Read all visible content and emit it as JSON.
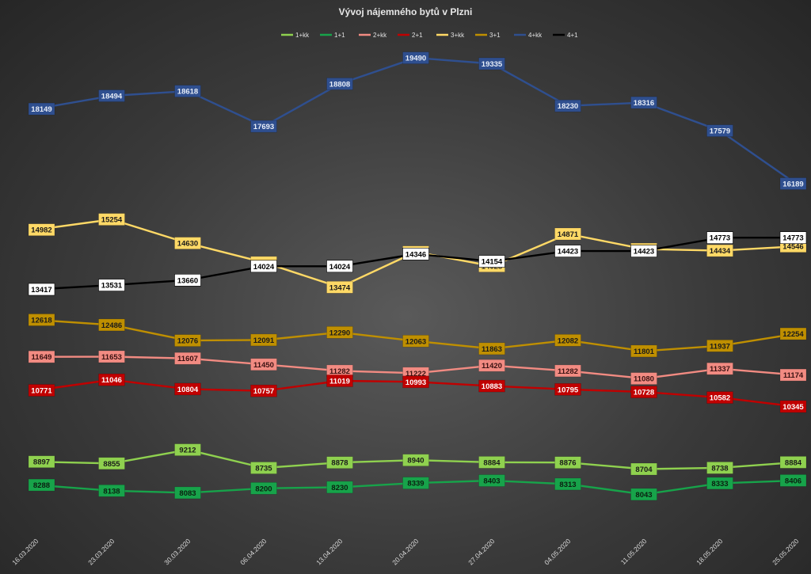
{
  "chart_data": {
    "type": "line",
    "title": "Vývoj nájemného  bytů v Plzni",
    "legend_position": "top",
    "grid": false,
    "ylim": [
      7000,
      20000
    ],
    "categories": [
      "16.03.2020",
      "23.03.2020",
      "30.03.2020",
      "06.04.2020",
      "13.04.2020",
      "20.04.2020",
      "27.04.2020",
      "04.05.2020",
      "11.05.2020",
      "18.05.2020",
      "25.05.2020"
    ],
    "series": [
      {
        "name": "1+kk",
        "color": "#8fd14f",
        "label_text_color": "#1a1a1a",
        "values": [
          8897,
          8855,
          9212,
          8735,
          8878,
          8940,
          8884,
          8876,
          8704,
          8738,
          8884
        ]
      },
      {
        "name": "1+1",
        "color": "#17a34a",
        "label_text_color": "#0b1f10",
        "values": [
          8288,
          8138,
          8083,
          8200,
          8230,
          8339,
          8403,
          8313,
          8043,
          8333,
          8406
        ]
      },
      {
        "name": "2+kk",
        "color": "#f28b82",
        "label_text_color": "#3a1212",
        "values": [
          11649,
          11653,
          11607,
          11450,
          11282,
          11222,
          11420,
          11282,
          11080,
          11337,
          11174
        ]
      },
      {
        "name": "2+1",
        "color": "#c00000",
        "label_text_color": "#ffffff",
        "values": [
          10771,
          11046,
          10804,
          10757,
          11019,
          10993,
          10883,
          10795,
          10728,
          10582,
          10345
        ]
      },
      {
        "name": "3+kk",
        "color": "#ffd966",
        "label_text_color": "#1a1a1a",
        "values": [
          14982,
          15254,
          14630,
          14125,
          13474,
          14400,
          14028,
          14871,
          14475,
          14434,
          14546
        ]
      },
      {
        "name": "3+1",
        "color": "#bf8f00",
        "label_text_color": "#1a1a1a",
        "values": [
          12618,
          12486,
          12076,
          12091,
          12290,
          12063,
          11863,
          12082,
          11801,
          11937,
          12254
        ]
      },
      {
        "name": "4+kk",
        "color": "#2f4f8f",
        "label_text_color": "#e8eef8",
        "values": [
          18149,
          18494,
          18618,
          17693,
          18808,
          19490,
          19335,
          18230,
          18316,
          17579,
          16189
        ]
      },
      {
        "name": "4+1",
        "color": "#000000",
        "label_text_color": "#000000",
        "label_bg": "#ffffff",
        "values": [
          13417,
          13531,
          13660,
          14024,
          14024,
          14346,
          14154,
          14423,
          14423,
          14773,
          14773
        ]
      }
    ]
  }
}
